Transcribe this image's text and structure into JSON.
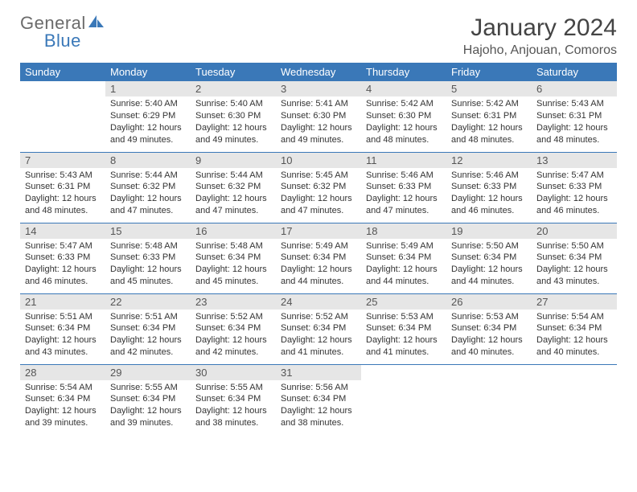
{
  "logo": {
    "top": "General",
    "bottom": "Blue"
  },
  "colors": {
    "header_bg": "#3a78b8",
    "header_text": "#ffffff",
    "daynum_bg": "#e6e6e6",
    "border": "#3a78b8",
    "logo_top": "#6b6b6b",
    "logo_bottom": "#3a78b8"
  },
  "title": "January 2024",
  "location": "Hajoho, Anjouan, Comoros",
  "weekdays": [
    "Sunday",
    "Monday",
    "Tuesday",
    "Wednesday",
    "Thursday",
    "Friday",
    "Saturday"
  ],
  "weeks": [
    [
      {
        "num": "",
        "lines": []
      },
      {
        "num": "1",
        "lines": [
          "Sunrise: 5:40 AM",
          "Sunset: 6:29 PM",
          "Daylight: 12 hours",
          "and 49 minutes."
        ]
      },
      {
        "num": "2",
        "lines": [
          "Sunrise: 5:40 AM",
          "Sunset: 6:30 PM",
          "Daylight: 12 hours",
          "and 49 minutes."
        ]
      },
      {
        "num": "3",
        "lines": [
          "Sunrise: 5:41 AM",
          "Sunset: 6:30 PM",
          "Daylight: 12 hours",
          "and 49 minutes."
        ]
      },
      {
        "num": "4",
        "lines": [
          "Sunrise: 5:42 AM",
          "Sunset: 6:30 PM",
          "Daylight: 12 hours",
          "and 48 minutes."
        ]
      },
      {
        "num": "5",
        "lines": [
          "Sunrise: 5:42 AM",
          "Sunset: 6:31 PM",
          "Daylight: 12 hours",
          "and 48 minutes."
        ]
      },
      {
        "num": "6",
        "lines": [
          "Sunrise: 5:43 AM",
          "Sunset: 6:31 PM",
          "Daylight: 12 hours",
          "and 48 minutes."
        ]
      }
    ],
    [
      {
        "num": "7",
        "lines": [
          "Sunrise: 5:43 AM",
          "Sunset: 6:31 PM",
          "Daylight: 12 hours",
          "and 48 minutes."
        ]
      },
      {
        "num": "8",
        "lines": [
          "Sunrise: 5:44 AM",
          "Sunset: 6:32 PM",
          "Daylight: 12 hours",
          "and 47 minutes."
        ]
      },
      {
        "num": "9",
        "lines": [
          "Sunrise: 5:44 AM",
          "Sunset: 6:32 PM",
          "Daylight: 12 hours",
          "and 47 minutes."
        ]
      },
      {
        "num": "10",
        "lines": [
          "Sunrise: 5:45 AM",
          "Sunset: 6:32 PM",
          "Daylight: 12 hours",
          "and 47 minutes."
        ]
      },
      {
        "num": "11",
        "lines": [
          "Sunrise: 5:46 AM",
          "Sunset: 6:33 PM",
          "Daylight: 12 hours",
          "and 47 minutes."
        ]
      },
      {
        "num": "12",
        "lines": [
          "Sunrise: 5:46 AM",
          "Sunset: 6:33 PM",
          "Daylight: 12 hours",
          "and 46 minutes."
        ]
      },
      {
        "num": "13",
        "lines": [
          "Sunrise: 5:47 AM",
          "Sunset: 6:33 PM",
          "Daylight: 12 hours",
          "and 46 minutes."
        ]
      }
    ],
    [
      {
        "num": "14",
        "lines": [
          "Sunrise: 5:47 AM",
          "Sunset: 6:33 PM",
          "Daylight: 12 hours",
          "and 46 minutes."
        ]
      },
      {
        "num": "15",
        "lines": [
          "Sunrise: 5:48 AM",
          "Sunset: 6:33 PM",
          "Daylight: 12 hours",
          "and 45 minutes."
        ]
      },
      {
        "num": "16",
        "lines": [
          "Sunrise: 5:48 AM",
          "Sunset: 6:34 PM",
          "Daylight: 12 hours",
          "and 45 minutes."
        ]
      },
      {
        "num": "17",
        "lines": [
          "Sunrise: 5:49 AM",
          "Sunset: 6:34 PM",
          "Daylight: 12 hours",
          "and 44 minutes."
        ]
      },
      {
        "num": "18",
        "lines": [
          "Sunrise: 5:49 AM",
          "Sunset: 6:34 PM",
          "Daylight: 12 hours",
          "and 44 minutes."
        ]
      },
      {
        "num": "19",
        "lines": [
          "Sunrise: 5:50 AM",
          "Sunset: 6:34 PM",
          "Daylight: 12 hours",
          "and 44 minutes."
        ]
      },
      {
        "num": "20",
        "lines": [
          "Sunrise: 5:50 AM",
          "Sunset: 6:34 PM",
          "Daylight: 12 hours",
          "and 43 minutes."
        ]
      }
    ],
    [
      {
        "num": "21",
        "lines": [
          "Sunrise: 5:51 AM",
          "Sunset: 6:34 PM",
          "Daylight: 12 hours",
          "and 43 minutes."
        ]
      },
      {
        "num": "22",
        "lines": [
          "Sunrise: 5:51 AM",
          "Sunset: 6:34 PM",
          "Daylight: 12 hours",
          "and 42 minutes."
        ]
      },
      {
        "num": "23",
        "lines": [
          "Sunrise: 5:52 AM",
          "Sunset: 6:34 PM",
          "Daylight: 12 hours",
          "and 42 minutes."
        ]
      },
      {
        "num": "24",
        "lines": [
          "Sunrise: 5:52 AM",
          "Sunset: 6:34 PM",
          "Daylight: 12 hours",
          "and 41 minutes."
        ]
      },
      {
        "num": "25",
        "lines": [
          "Sunrise: 5:53 AM",
          "Sunset: 6:34 PM",
          "Daylight: 12 hours",
          "and 41 minutes."
        ]
      },
      {
        "num": "26",
        "lines": [
          "Sunrise: 5:53 AM",
          "Sunset: 6:34 PM",
          "Daylight: 12 hours",
          "and 40 minutes."
        ]
      },
      {
        "num": "27",
        "lines": [
          "Sunrise: 5:54 AM",
          "Sunset: 6:34 PM",
          "Daylight: 12 hours",
          "and 40 minutes."
        ]
      }
    ],
    [
      {
        "num": "28",
        "lines": [
          "Sunrise: 5:54 AM",
          "Sunset: 6:34 PM",
          "Daylight: 12 hours",
          "and 39 minutes."
        ]
      },
      {
        "num": "29",
        "lines": [
          "Sunrise: 5:55 AM",
          "Sunset: 6:34 PM",
          "Daylight: 12 hours",
          "and 39 minutes."
        ]
      },
      {
        "num": "30",
        "lines": [
          "Sunrise: 5:55 AM",
          "Sunset: 6:34 PM",
          "Daylight: 12 hours",
          "and 38 minutes."
        ]
      },
      {
        "num": "31",
        "lines": [
          "Sunrise: 5:56 AM",
          "Sunset: 6:34 PM",
          "Daylight: 12 hours",
          "and 38 minutes."
        ]
      },
      {
        "num": "",
        "lines": []
      },
      {
        "num": "",
        "lines": []
      },
      {
        "num": "",
        "lines": []
      }
    ]
  ]
}
